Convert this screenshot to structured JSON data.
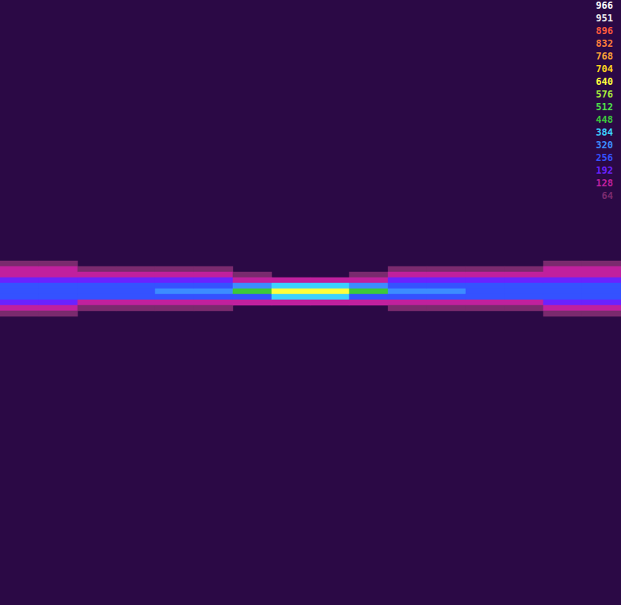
{
  "chart_data": {
    "type": "heatmap",
    "tick_labels": false,
    "x": [
      null,
      null,
      null,
      null,
      null,
      null,
      null,
      null,
      null,
      null,
      null,
      null,
      null,
      null,
      null,
      null
    ],
    "y": [
      null,
      null,
      null,
      null,
      null,
      null,
      null,
      null,
      null,
      null,
      null,
      null,
      null,
      null,
      null,
      null,
      null,
      null,
      null,
      null,
      null,
      null,
      null,
      null,
      null,
      null,
      null,
      null,
      null,
      null,
      null,
      null,
      null,
      null,
      null,
      null,
      null,
      null,
      null,
      null,
      null,
      null,
      null,
      null,
      null,
      null,
      null,
      null,
      null,
      null,
      null,
      null,
      null,
      null,
      null,
      null,
      null,
      null,
      null,
      null,
      null,
      null,
      null,
      null,
      null,
      null,
      null,
      null,
      null,
      null,
      null,
      null,
      null,
      null,
      null,
      null,
      null,
      null,
      null,
      null,
      null,
      null,
      null,
      null,
      null,
      null,
      null,
      null,
      null,
      null,
      null,
      null,
      null,
      null,
      null,
      null,
      null,
      null,
      null,
      null,
      null,
      null,
      null,
      null,
      null,
      null,
      null,
      null,
      null
    ],
    "cells": [
      [
        0,
        47,
        70
      ],
      [
        0,
        48,
        140
      ],
      [
        0,
        49,
        180
      ],
      [
        0,
        50,
        230
      ],
      [
        0,
        51,
        290
      ],
      [
        0,
        52,
        300
      ],
      [
        0,
        53,
        270
      ],
      [
        0,
        54,
        200
      ],
      [
        0,
        55,
        150
      ],
      [
        0,
        56,
        80
      ],
      [
        1,
        47,
        70
      ],
      [
        1,
        48,
        140
      ],
      [
        1,
        49,
        180
      ],
      [
        1,
        50,
        230
      ],
      [
        1,
        51,
        290
      ],
      [
        1,
        52,
        300
      ],
      [
        1,
        53,
        270
      ],
      [
        1,
        54,
        200
      ],
      [
        1,
        55,
        150
      ],
      [
        1,
        56,
        80
      ],
      [
        2,
        48,
        100
      ],
      [
        2,
        49,
        160
      ],
      [
        2,
        50,
        220
      ],
      [
        2,
        51,
        290
      ],
      [
        2,
        52,
        320
      ],
      [
        2,
        53,
        280
      ],
      [
        2,
        54,
        190
      ],
      [
        2,
        55,
        120
      ],
      [
        3,
        48,
        100
      ],
      [
        3,
        49,
        160
      ],
      [
        3,
        50,
        220
      ],
      [
        3,
        51,
        290
      ],
      [
        3,
        52,
        320
      ],
      [
        3,
        53,
        280
      ],
      [
        3,
        54,
        190
      ],
      [
        3,
        55,
        120
      ],
      [
        4,
        48,
        70
      ],
      [
        4,
        49,
        140
      ],
      [
        4,
        50,
        200
      ],
      [
        4,
        51,
        310
      ],
      [
        4,
        52,
        370
      ],
      [
        4,
        53,
        300
      ],
      [
        4,
        54,
        170
      ],
      [
        4,
        55,
        90
      ],
      [
        5,
        48,
        70
      ],
      [
        5,
        49,
        140
      ],
      [
        5,
        50,
        200
      ],
      [
        5,
        51,
        310
      ],
      [
        5,
        52,
        370
      ],
      [
        5,
        53,
        300
      ],
      [
        5,
        54,
        170
      ],
      [
        5,
        55,
        90
      ],
      [
        6,
        49,
        120
      ],
      [
        6,
        50,
        190
      ],
      [
        6,
        51,
        340
      ],
      [
        6,
        52,
        470
      ],
      [
        6,
        53,
        320
      ],
      [
        6,
        54,
        150
      ],
      [
        7,
        50,
        150
      ],
      [
        7,
        51,
        390
      ],
      [
        7,
        52,
        660
      ],
      [
        7,
        53,
        410
      ],
      [
        7,
        54,
        130
      ],
      [
        8,
        50,
        150
      ],
      [
        8,
        51,
        390
      ],
      [
        8,
        52,
        660
      ],
      [
        8,
        53,
        410
      ],
      [
        8,
        54,
        130
      ],
      [
        9,
        49,
        110
      ],
      [
        9,
        50,
        180
      ],
      [
        9,
        51,
        330
      ],
      [
        9,
        52,
        450
      ],
      [
        9,
        53,
        310
      ],
      [
        9,
        54,
        150
      ],
      [
        10,
        48,
        70
      ],
      [
        10,
        49,
        140
      ],
      [
        10,
        50,
        200
      ],
      [
        10,
        51,
        310
      ],
      [
        10,
        52,
        370
      ],
      [
        10,
        53,
        300
      ],
      [
        10,
        54,
        170
      ],
      [
        10,
        55,
        90
      ],
      [
        11,
        48,
        70
      ],
      [
        11,
        49,
        140
      ],
      [
        11,
        50,
        200
      ],
      [
        11,
        51,
        310
      ],
      [
        11,
        52,
        370
      ],
      [
        11,
        53,
        300
      ],
      [
        11,
        54,
        170
      ],
      [
        11,
        55,
        90
      ],
      [
        12,
        48,
        100
      ],
      [
        12,
        49,
        160
      ],
      [
        12,
        50,
        220
      ],
      [
        12,
        51,
        290
      ],
      [
        12,
        52,
        320
      ],
      [
        12,
        53,
        280
      ],
      [
        12,
        54,
        190
      ],
      [
        12,
        55,
        120
      ],
      [
        13,
        48,
        100
      ],
      [
        13,
        49,
        160
      ],
      [
        13,
        50,
        220
      ],
      [
        13,
        51,
        290
      ],
      [
        13,
        52,
        320
      ],
      [
        13,
        53,
        280
      ],
      [
        13,
        54,
        190
      ],
      [
        13,
        55,
        120
      ],
      [
        14,
        47,
        70
      ],
      [
        14,
        48,
        140
      ],
      [
        14,
        49,
        180
      ],
      [
        14,
        50,
        230
      ],
      [
        14,
        51,
        290
      ],
      [
        14,
        52,
        300
      ],
      [
        14,
        53,
        270
      ],
      [
        14,
        54,
        200
      ],
      [
        14,
        55,
        150
      ],
      [
        14,
        56,
        80
      ],
      [
        15,
        47,
        70
      ],
      [
        15,
        48,
        140
      ],
      [
        15,
        49,
        180
      ],
      [
        15,
        50,
        230
      ],
      [
        15,
        51,
        290
      ],
      [
        15,
        52,
        300
      ],
      [
        15,
        53,
        270
      ],
      [
        15,
        54,
        200
      ],
      [
        15,
        55,
        150
      ],
      [
        15,
        56,
        80
      ]
    ],
    "colorbar": {
      "range": [
        0,
        966
      ],
      "ticks": [
        966,
        951,
        896,
        832,
        768,
        704,
        640,
        576,
        512,
        448,
        384,
        320,
        256,
        192,
        128,
        64
      ],
      "colors": [
        "#ffffff",
        "#f0f0f0",
        "#ff5a3c",
        "#ff7e3a",
        "#ffa436",
        "#ffd21e",
        "#ffff3c",
        "#a8f03c",
        "#4ee04a",
        "#3cc83c",
        "#3cd2ff",
        "#3c8cff",
        "#3452ff",
        "#6a22ff",
        "#c0209e",
        "#7a2a6e"
      ]
    }
  }
}
